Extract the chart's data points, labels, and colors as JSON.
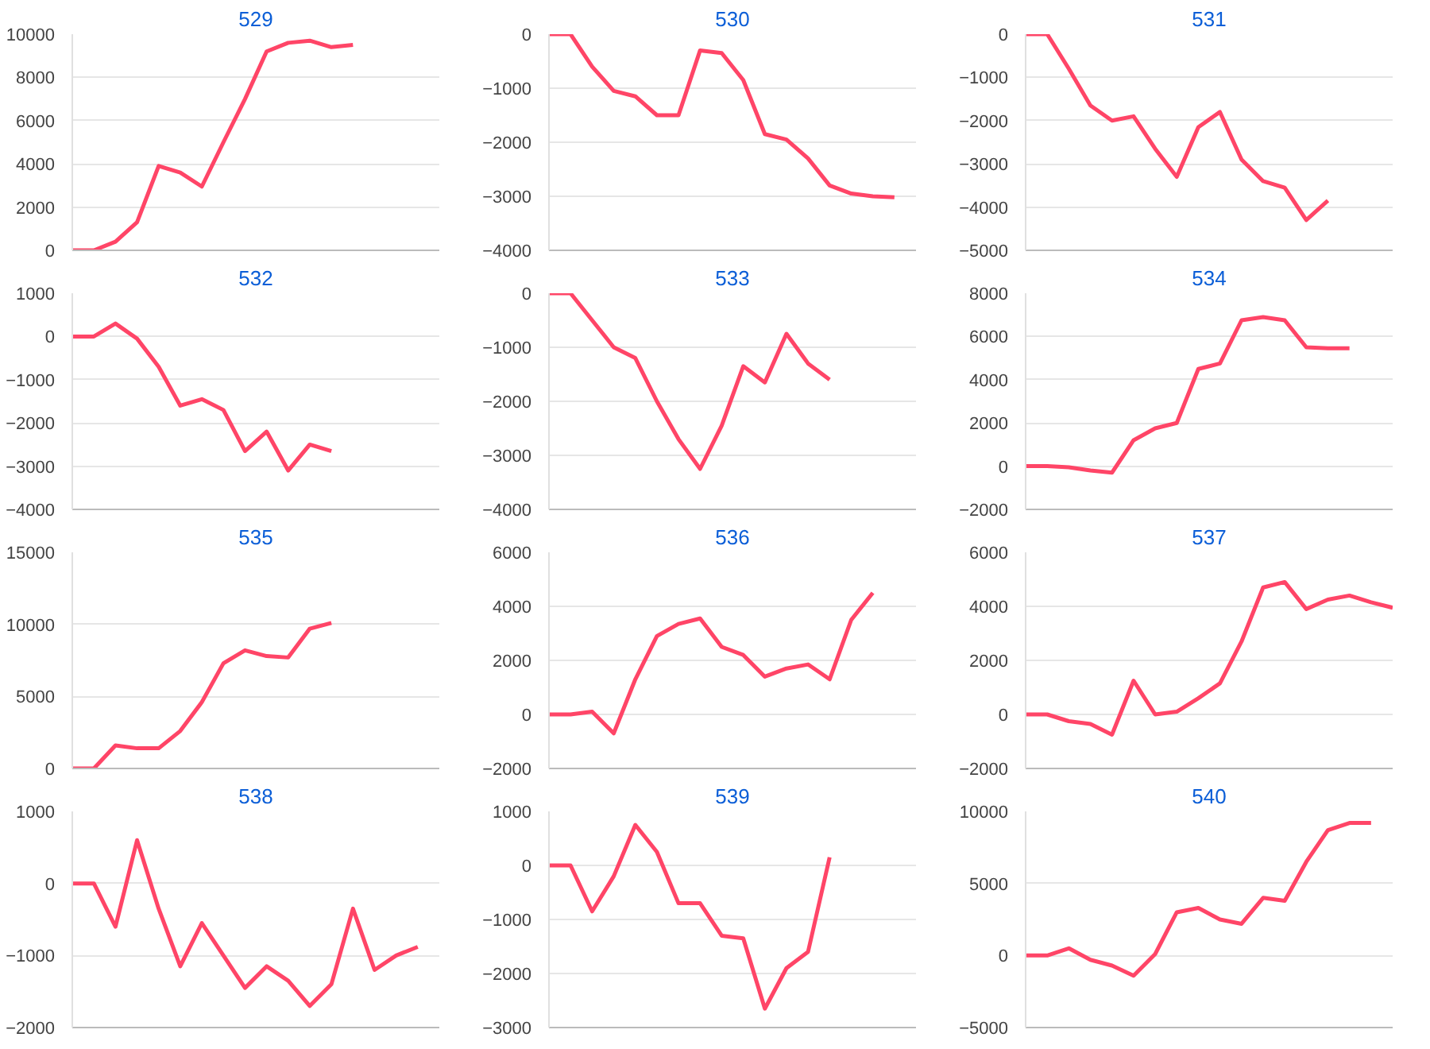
{
  "chart_data": [
    {
      "type": "line",
      "title": "529",
      "categories": [
        null,
        null,
        null,
        null,
        null,
        null,
        null,
        null,
        null,
        null,
        null,
        null,
        null,
        null,
        null,
        null,
        null,
        null
      ],
      "series": [
        {
          "color": "#ff4567",
          "values": [
            0,
            0,
            400,
            1300,
            3900,
            3600,
            2950,
            5000,
            7000,
            9200,
            9600,
            9700,
            9400,
            9500,
            null,
            null,
            null,
            null
          ]
        }
      ],
      "ylim": [
        0,
        10000
      ],
      "yticks": [
        0,
        2000,
        4000,
        6000,
        8000,
        10000
      ],
      "grid": "y",
      "tick_labels": "y"
    },
    {
      "type": "line",
      "title": "530",
      "categories": [
        null,
        null,
        null,
        null,
        null,
        null,
        null,
        null,
        null,
        null,
        null,
        null,
        null,
        null,
        null,
        null,
        null,
        null
      ],
      "series": [
        {
          "color": "#ff4567",
          "values": [
            0,
            0,
            -600,
            -1050,
            -1150,
            -1500,
            -1500,
            -300,
            -350,
            -850,
            -1850,
            -1950,
            -2300,
            -2800,
            -2950,
            -3000,
            -3020,
            null
          ]
        }
      ],
      "ylim": [
        -4000,
        0
      ],
      "yticks": [
        -4000,
        -3000,
        -2000,
        -1000,
        0
      ],
      "grid": "y",
      "tick_labels": "y"
    },
    {
      "type": "line",
      "title": "531",
      "categories": [
        null,
        null,
        null,
        null,
        null,
        null,
        null,
        null,
        null,
        null,
        null,
        null,
        null,
        null,
        null,
        null,
        null,
        null
      ],
      "series": [
        {
          "color": "#ff4567",
          "values": [
            0,
            0,
            -800,
            -1650,
            -2000,
            -1900,
            -2650,
            -3300,
            -2150,
            -1800,
            -2900,
            -3400,
            -3550,
            -4300,
            -3850,
            null,
            null,
            null
          ]
        }
      ],
      "ylim": [
        -5000,
        0
      ],
      "yticks": [
        -5000,
        -4000,
        -3000,
        -2000,
        -1000,
        0
      ],
      "grid": "y",
      "tick_labels": "y"
    },
    {
      "type": "line",
      "title": "532",
      "categories": [
        null,
        null,
        null,
        null,
        null,
        null,
        null,
        null,
        null,
        null,
        null,
        null,
        null,
        null,
        null,
        null,
        null,
        null
      ],
      "series": [
        {
          "color": "#ff4567",
          "values": [
            0,
            0,
            300,
            -50,
            -700,
            -1600,
            -1450,
            -1700,
            -2650,
            -2200,
            -3100,
            -2500,
            -2650,
            null,
            null,
            null,
            null,
            null
          ]
        }
      ],
      "ylim": [
        -4000,
        1000
      ],
      "yticks": [
        -4000,
        -3000,
        -2000,
        -1000,
        0,
        1000
      ],
      "grid": "y",
      "tick_labels": "y"
    },
    {
      "type": "line",
      "title": "533",
      "categories": [
        null,
        null,
        null,
        null,
        null,
        null,
        null,
        null,
        null,
        null,
        null,
        null,
        null,
        null,
        null,
        null,
        null,
        null
      ],
      "series": [
        {
          "color": "#ff4567",
          "values": [
            0,
            0,
            -500,
            -1000,
            -1200,
            -2000,
            -2700,
            -3250,
            -2450,
            -1350,
            -1650,
            -750,
            -1300,
            -1600,
            null,
            null,
            null,
            null
          ]
        }
      ],
      "ylim": [
        -4000,
        0
      ],
      "yticks": [
        -4000,
        -3000,
        -2000,
        -1000,
        0
      ],
      "grid": "y",
      "tick_labels": "y"
    },
    {
      "type": "line",
      "title": "534",
      "categories": [
        null,
        null,
        null,
        null,
        null,
        null,
        null,
        null,
        null,
        null,
        null,
        null,
        null,
        null,
        null,
        null,
        null,
        null
      ],
      "series": [
        {
          "color": "#ff4567",
          "values": [
            0,
            0,
            -50,
            -200,
            -300,
            1200,
            1750,
            2000,
            4500,
            4750,
            6750,
            6900,
            6750,
            5500,
            5450,
            5450,
            null,
            null
          ]
        }
      ],
      "ylim": [
        -2000,
        8000
      ],
      "yticks": [
        -2000,
        0,
        2000,
        4000,
        6000,
        8000
      ],
      "grid": "y",
      "tick_labels": "y"
    },
    {
      "type": "line",
      "title": "535",
      "categories": [
        null,
        null,
        null,
        null,
        null,
        null,
        null,
        null,
        null,
        null,
        null,
        null,
        null,
        null,
        null,
        null,
        null,
        null
      ],
      "series": [
        {
          "color": "#ff4567",
          "values": [
            0,
            0,
            1600,
            1400,
            1400,
            2600,
            4600,
            7300,
            8200,
            7800,
            7700,
            9700,
            10100,
            null,
            null,
            null,
            null,
            null
          ]
        }
      ],
      "ylim": [
        0,
        15000
      ],
      "yticks": [
        0,
        5000,
        10000,
        15000
      ],
      "grid": "y",
      "tick_labels": "y"
    },
    {
      "type": "line",
      "title": "536",
      "categories": [
        null,
        null,
        null,
        null,
        null,
        null,
        null,
        null,
        null,
        null,
        null,
        null,
        null,
        null,
        null,
        null,
        null,
        null
      ],
      "series": [
        {
          "color": "#ff4567",
          "values": [
            0,
            0,
            100,
            -700,
            1300,
            2900,
            3350,
            3550,
            2500,
            2200,
            1400,
            1700,
            1850,
            1300,
            3500,
            4500,
            null,
            null
          ]
        }
      ],
      "ylim": [
        -2000,
        6000
      ],
      "yticks": [
        -2000,
        0,
        2000,
        4000,
        6000
      ],
      "grid": "y",
      "tick_labels": "y"
    },
    {
      "type": "line",
      "title": "537",
      "categories": [
        null,
        null,
        null,
        null,
        null,
        null,
        null,
        null,
        null,
        null,
        null,
        null,
        null,
        null,
        null,
        null,
        null,
        null
      ],
      "series": [
        {
          "color": "#ff4567",
          "values": [
            0,
            0,
            -250,
            -350,
            -750,
            1250,
            0,
            100,
            600,
            1150,
            2700,
            4700,
            4900,
            3900,
            4250,
            4400,
            4150,
            3950
          ]
        }
      ],
      "ylim": [
        -2000,
        6000
      ],
      "yticks": [
        -2000,
        0,
        2000,
        4000,
        6000
      ],
      "grid": "y",
      "tick_labels": "y"
    },
    {
      "type": "line",
      "title": "538",
      "categories": [
        null,
        null,
        null,
        null,
        null,
        null,
        null,
        null,
        null,
        null,
        null,
        null,
        null,
        null,
        null,
        null,
        null,
        null
      ],
      "series": [
        {
          "color": "#ff4567",
          "values": [
            0,
            0,
            -600,
            600,
            -350,
            -1150,
            -550,
            -1000,
            -1450,
            -1150,
            -1350,
            -1700,
            -1400,
            -350,
            -1200,
            -1000,
            -880,
            null
          ]
        }
      ],
      "ylim": [
        -2000,
        1000
      ],
      "yticks": [
        -2000,
        -1000,
        0,
        1000
      ],
      "grid": "y",
      "tick_labels": "y"
    },
    {
      "type": "line",
      "title": "539",
      "categories": [
        null,
        null,
        null,
        null,
        null,
        null,
        null,
        null,
        null,
        null,
        null,
        null,
        null,
        null,
        null,
        null,
        null,
        null
      ],
      "series": [
        {
          "color": "#ff4567",
          "values": [
            0,
            0,
            -850,
            -200,
            750,
            250,
            -700,
            -700,
            -1300,
            -1350,
            -2650,
            -1900,
            -1600,
            150,
            null,
            null,
            null,
            null
          ]
        }
      ],
      "ylim": [
        -3000,
        1000
      ],
      "yticks": [
        -3000,
        -2000,
        -1000,
        0,
        1000
      ],
      "grid": "y",
      "tick_labels": "y"
    },
    {
      "type": "line",
      "title": "540",
      "categories": [
        null,
        null,
        null,
        null,
        null,
        null,
        null,
        null,
        null,
        null,
        null,
        null,
        null,
        null,
        null,
        null,
        null,
        null
      ],
      "series": [
        {
          "color": "#ff4567",
          "values": [
            0,
            0,
            500,
            -300,
            -700,
            -1400,
            100,
            3000,
            3300,
            2500,
            2200,
            4000,
            3800,
            6500,
            8700,
            9200,
            9200,
            null
          ]
        }
      ],
      "ylim": [
        -5000,
        10000
      ],
      "yticks": [
        -5000,
        0,
        5000,
        10000
      ],
      "grid": "y",
      "tick_labels": "y"
    }
  ]
}
